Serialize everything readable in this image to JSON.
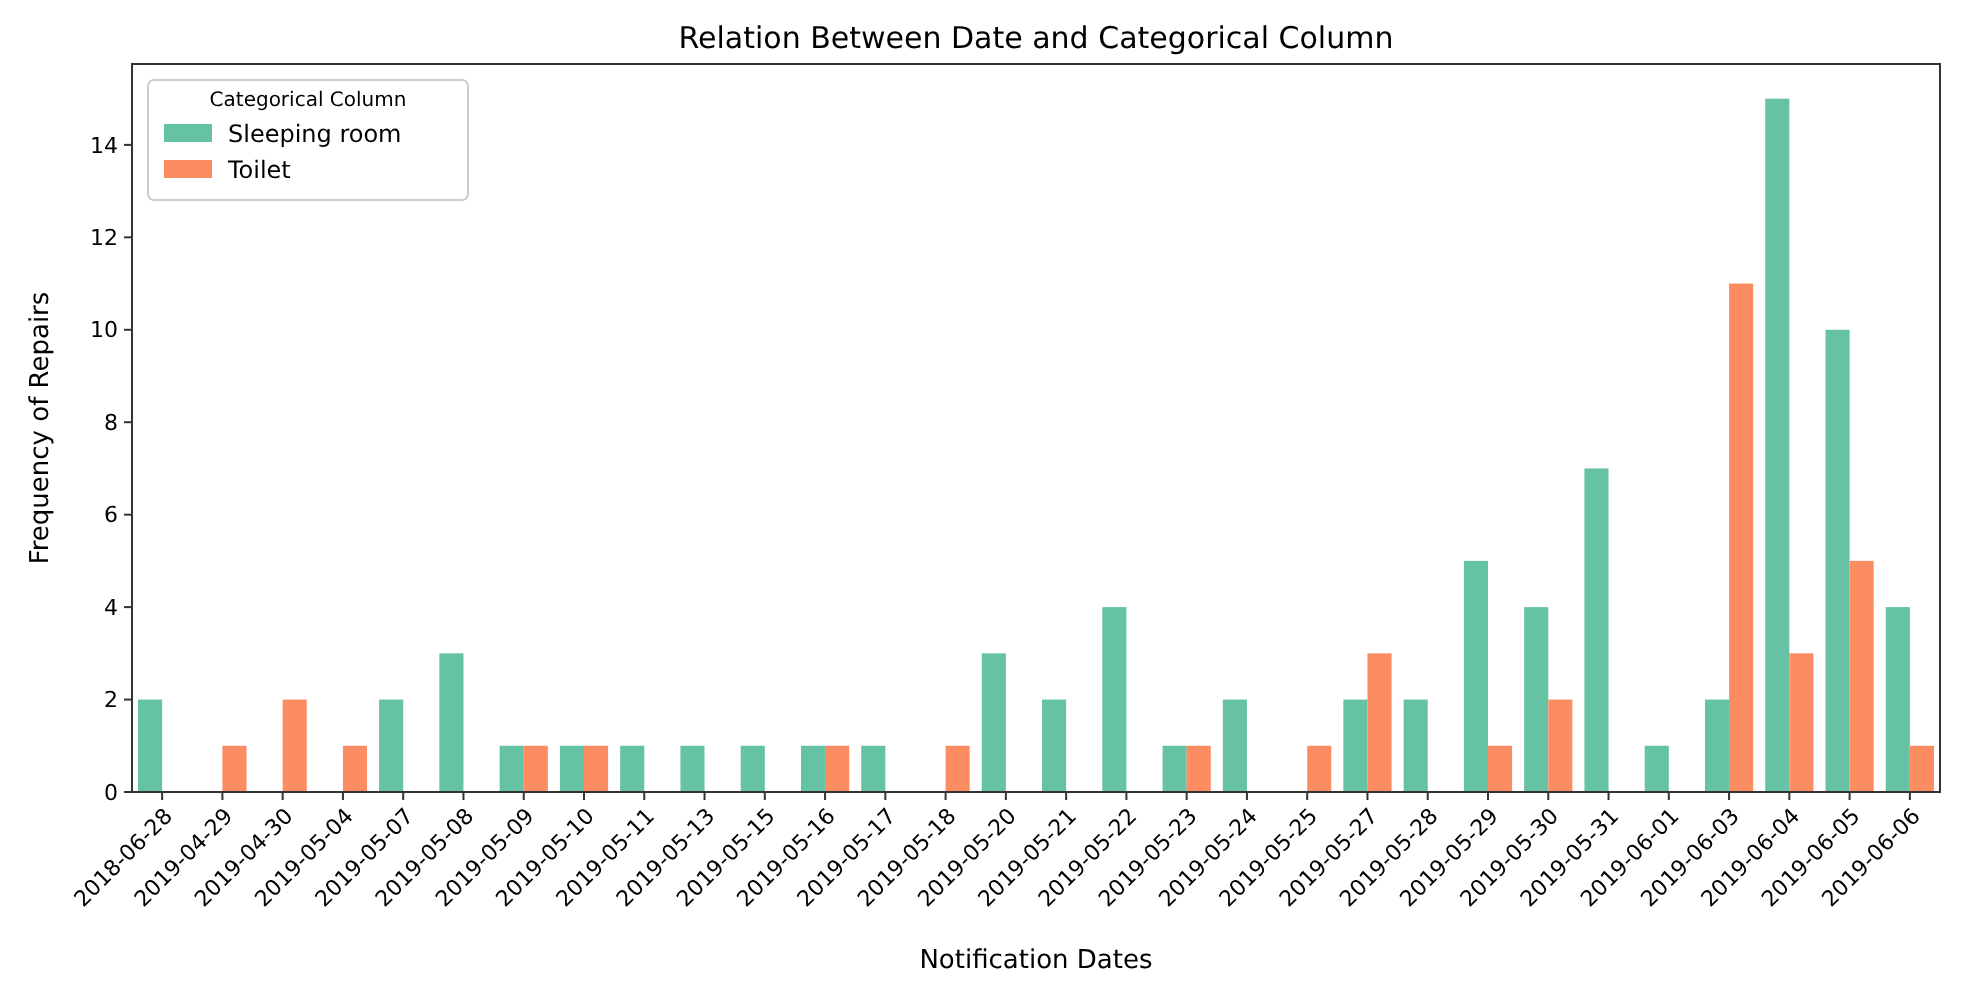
{
  "chart_data": {
    "type": "bar",
    "title": "Relation Between Date and Categorical Column",
    "xlabel": "Notification Dates",
    "ylabel": "Frequency of Repairs",
    "legend_title": "Categorical Column",
    "legend": "top left",
    "grid": false,
    "categories": [
      "2018-06-28",
      "2019-04-29",
      "2019-04-30",
      "2019-05-04",
      "2019-05-07",
      "2019-05-08",
      "2019-05-09",
      "2019-05-10",
      "2019-05-11",
      "2019-05-13",
      "2019-05-15",
      "2019-05-16",
      "2019-05-17",
      "2019-05-18",
      "2019-05-20",
      "2019-05-21",
      "2019-05-22",
      "2019-05-23",
      "2019-05-24",
      "2019-05-25",
      "2019-05-27",
      "2019-05-28",
      "2019-05-29",
      "2019-05-30",
      "2019-05-31",
      "2019-06-01",
      "2019-06-03",
      "2019-06-04",
      "2019-06-05",
      "2019-06-06"
    ],
    "series": [
      {
        "name": "Sleeping room",
        "color": "#66c2a5",
        "values": [
          2,
          null,
          null,
          null,
          2,
          3,
          1,
          1,
          1,
          1,
          1,
          1,
          1,
          null,
          3,
          2,
          4,
          1,
          2,
          null,
          2,
          2,
          5,
          4,
          7,
          1,
          2,
          15,
          10,
          4
        ]
      },
      {
        "name": "Toilet",
        "color": "#fc8d62",
        "values": [
          null,
          1,
          2,
          1,
          null,
          null,
          1,
          1,
          null,
          null,
          null,
          1,
          null,
          1,
          null,
          null,
          null,
          1,
          null,
          1,
          3,
          null,
          1,
          2,
          null,
          null,
          11,
          3,
          5,
          1
        ]
      }
    ],
    "ylim": [
      0,
      15.75
    ],
    "yticks": [
      0,
      2,
      4,
      6,
      8,
      10,
      12,
      14
    ]
  }
}
